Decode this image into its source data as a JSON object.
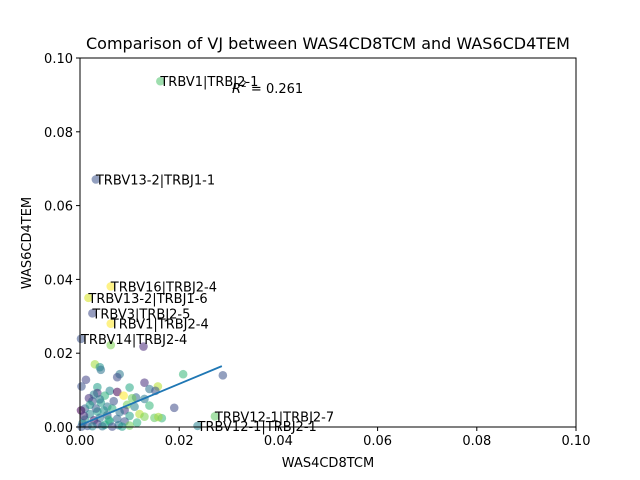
{
  "chart_data": {
    "type": "scatter",
    "title": "Comparison of VJ between WAS4CD8TCM and WAS6CD4TEM",
    "xlabel": "WAS4CD8TCM",
    "ylabel": "WAS6CD4TEM",
    "xlim": [
      0,
      0.1
    ],
    "ylim": [
      0,
      0.1
    ],
    "xticks": [
      "0.00",
      "0.02",
      "0.04",
      "0.06",
      "0.08",
      "0.10"
    ],
    "yticks": [
      "0.00",
      "0.02",
      "0.04",
      "0.06",
      "0.08",
      "0.10"
    ],
    "r2_label": "R",
    "r2_sup": "2",
    "r2_value": " = 0.261",
    "fit_line": {
      "x": [
        0,
        0.0286
      ],
      "y": [
        0.0005,
        0.0165
      ],
      "color": "#1f77b4"
    },
    "annotations": [
      {
        "text": "TRBV1|TRBJ2-1",
        "x": 0.0162,
        "y": 0.0937
      },
      {
        "text": "TRBV13-2|TRBJ1-1",
        "x": 0.0032,
        "y": 0.0671
      },
      {
        "text": "TRBV16|TRBJ2-4",
        "x": 0.0062,
        "y": 0.0381
      },
      {
        "text": "TRBV13-2|TRBJ1-6",
        "x": 0.0017,
        "y": 0.035
      },
      {
        "text": "TRBV3|TRBJ2-5",
        "x": 0.0025,
        "y": 0.0308
      },
      {
        "text": "TRBV1|TRBJ2-4",
        "x": 0.0062,
        "y": 0.028
      },
      {
        "text": "TRBV14|TRBJ2-4",
        "x": 0.0002,
        "y": 0.0239
      },
      {
        "text": "TRBV12-1|TRBJ2-7",
        "x": 0.0272,
        "y": 0.0029
      },
      {
        "text": "TRBV12-1|TRBJ2-1",
        "x": 0.0237,
        "y": 0.0003
      }
    ],
    "points": [
      {
        "x": 0.0162,
        "y": 0.0937,
        "c": "#4ec36b"
      },
      {
        "x": 0.0032,
        "y": 0.0671,
        "c": "#3b528b"
      },
      {
        "x": 0.0062,
        "y": 0.0381,
        "c": "#fde725"
      },
      {
        "x": 0.0017,
        "y": 0.035,
        "c": "#d5e21a"
      },
      {
        "x": 0.0025,
        "y": 0.0308,
        "c": "#3e4a89"
      },
      {
        "x": 0.0062,
        "y": 0.028,
        "c": "#fde725"
      },
      {
        "x": 0.0002,
        "y": 0.0239,
        "c": "#3b528b"
      },
      {
        "x": 0.0272,
        "y": 0.0029,
        "c": "#5ec962"
      },
      {
        "x": 0.0237,
        "y": 0.0003,
        "c": "#26828e"
      },
      {
        "x": 0.0128,
        "y": 0.0218,
        "c": "#482878"
      },
      {
        "x": 0.0062,
        "y": 0.0222,
        "c": "#7ad151"
      },
      {
        "x": 0.003,
        "y": 0.017,
        "c": "#a0da39"
      },
      {
        "x": 0.004,
        "y": 0.0162,
        "c": "#21918c"
      },
      {
        "x": 0.0042,
        "y": 0.0155,
        "c": "#2c728e"
      },
      {
        "x": 0.0208,
        "y": 0.0143,
        "c": "#35b779"
      },
      {
        "x": 0.0288,
        "y": 0.014,
        "c": "#3b528b"
      },
      {
        "x": 0.008,
        "y": 0.0143,
        "c": "#2a788e"
      },
      {
        "x": 0.0075,
        "y": 0.0135,
        "c": "#3e4a89"
      },
      {
        "x": 0.0012,
        "y": 0.0128,
        "c": "#414487"
      },
      {
        "x": 0.013,
        "y": 0.012,
        "c": "#472d7b"
      },
      {
        "x": 0.0157,
        "y": 0.011,
        "c": "#b5de2b"
      },
      {
        "x": 0.0003,
        "y": 0.011,
        "c": "#3b528b"
      },
      {
        "x": 0.0035,
        "y": 0.0108,
        "c": "#1f9e89"
      },
      {
        "x": 0.01,
        "y": 0.0107,
        "c": "#22a884"
      },
      {
        "x": 0.014,
        "y": 0.0103,
        "c": "#2c728e"
      },
      {
        "x": 0.0152,
        "y": 0.0098,
        "c": "#3b528b"
      },
      {
        "x": 0.006,
        "y": 0.0098,
        "c": "#25858e"
      },
      {
        "x": 0.0075,
        "y": 0.0095,
        "c": "#440154"
      },
      {
        "x": 0.0035,
        "y": 0.0092,
        "c": "#482878"
      },
      {
        "x": 0.0028,
        "y": 0.0088,
        "c": "#26828e"
      },
      {
        "x": 0.005,
        "y": 0.0085,
        "c": "#2db27d"
      },
      {
        "x": 0.0088,
        "y": 0.0085,
        "c": "#fde725"
      },
      {
        "x": 0.0113,
        "y": 0.008,
        "c": "#31688e"
      },
      {
        "x": 0.0018,
        "y": 0.0078,
        "c": "#462f7c"
      },
      {
        "x": 0.0105,
        "y": 0.0078,
        "c": "#6ece58"
      },
      {
        "x": 0.013,
        "y": 0.0076,
        "c": "#297b8e"
      },
      {
        "x": 0.0025,
        "y": 0.007,
        "c": "#3b528b"
      },
      {
        "x": 0.0042,
        "y": 0.0066,
        "c": "#1f9e89"
      },
      {
        "x": 0.0095,
        "y": 0.006,
        "c": "#6ece58"
      },
      {
        "x": 0.014,
        "y": 0.0058,
        "c": "#35b779"
      },
      {
        "x": 0.0055,
        "y": 0.0055,
        "c": "#2a788e"
      },
      {
        "x": 0.019,
        "y": 0.0052,
        "c": "#3e4a89"
      },
      {
        "x": 0.001,
        "y": 0.005,
        "c": "#355f8d"
      },
      {
        "x": 0.0065,
        "y": 0.005,
        "c": "#29af7f"
      },
      {
        "x": 0.009,
        "y": 0.0045,
        "c": "#443983"
      },
      {
        "x": 0.0002,
        "y": 0.0045,
        "c": "#440154"
      },
      {
        "x": 0.0035,
        "y": 0.0042,
        "c": "#1fa088"
      },
      {
        "x": 0.008,
        "y": 0.004,
        "c": "#2c728e"
      },
      {
        "x": 0.012,
        "y": 0.0035,
        "c": "#b5de2b"
      },
      {
        "x": 0.002,
        "y": 0.0035,
        "c": "#24868e"
      },
      {
        "x": 0.0055,
        "y": 0.0032,
        "c": "#3b528b"
      },
      {
        "x": 0.01,
        "y": 0.003,
        "c": "#20a386"
      },
      {
        "x": 0.013,
        "y": 0.0028,
        "c": "#7ad151"
      },
      {
        "x": 0.015,
        "y": 0.0025,
        "c": "#5ec962"
      },
      {
        "x": 0.0165,
        "y": 0.0024,
        "c": "#35b779"
      },
      {
        "x": 0.0158,
        "y": 0.0027,
        "c": "#a5db36"
      },
      {
        "x": 0.004,
        "y": 0.0025,
        "c": "#2c728e"
      },
      {
        "x": 0.0075,
        "y": 0.0022,
        "c": "#31688e"
      },
      {
        "x": 0.001,
        "y": 0.002,
        "c": "#21918c"
      },
      {
        "x": 0.0028,
        "y": 0.0018,
        "c": "#481f70"
      },
      {
        "x": 0.006,
        "y": 0.0015,
        "c": "#1e9b8a"
      },
      {
        "x": 0.009,
        "y": 0.0015,
        "c": "#3b528b"
      },
      {
        "x": 0.0115,
        "y": 0.0012,
        "c": "#2db27d"
      },
      {
        "x": 0.0005,
        "y": 0.001,
        "c": "#25858e"
      },
      {
        "x": 0.0035,
        "y": 0.0008,
        "c": "#433e85"
      },
      {
        "x": 0.005,
        "y": 0.0006,
        "c": "#22a884"
      },
      {
        "x": 0.0078,
        "y": 0.0005,
        "c": "#2a788e"
      },
      {
        "x": 0.01,
        "y": 0.0004,
        "c": "#6ece58"
      },
      {
        "x": 0.0015,
        "y": 0.0003,
        "c": "#3b528b"
      },
      {
        "x": 0.0025,
        "y": 0.0002,
        "c": "#26828e"
      },
      {
        "x": 0.0045,
        "y": 0.0002,
        "c": "#2c728e"
      },
      {
        "x": 0.0065,
        "y": 0.0001,
        "c": "#3e4a89"
      },
      {
        "x": 0.0085,
        "y": 0.0001,
        "c": "#1f9e89"
      },
      {
        "x": 0.0003,
        "y": 0.0001,
        "c": "#38588c"
      },
      {
        "x": 0.002,
        "y": 0.006,
        "c": "#1f9e89"
      },
      {
        "x": 0.0048,
        "y": 0.0045,
        "c": "#21918c"
      },
      {
        "x": 0.0068,
        "y": 0.007,
        "c": "#3b528b"
      },
      {
        "x": 0.011,
        "y": 0.0055,
        "c": "#25858e"
      },
      {
        "x": 0.004,
        "y": 0.0075,
        "c": "#2a788e"
      },
      {
        "x": 0.0008,
        "y": 0.003,
        "c": "#472d7b"
      },
      {
        "x": 0.0058,
        "y": 0.002,
        "c": "#29af7f"
      },
      {
        "x": 0.0032,
        "y": 0.005,
        "c": "#355f8d"
      }
    ]
  }
}
